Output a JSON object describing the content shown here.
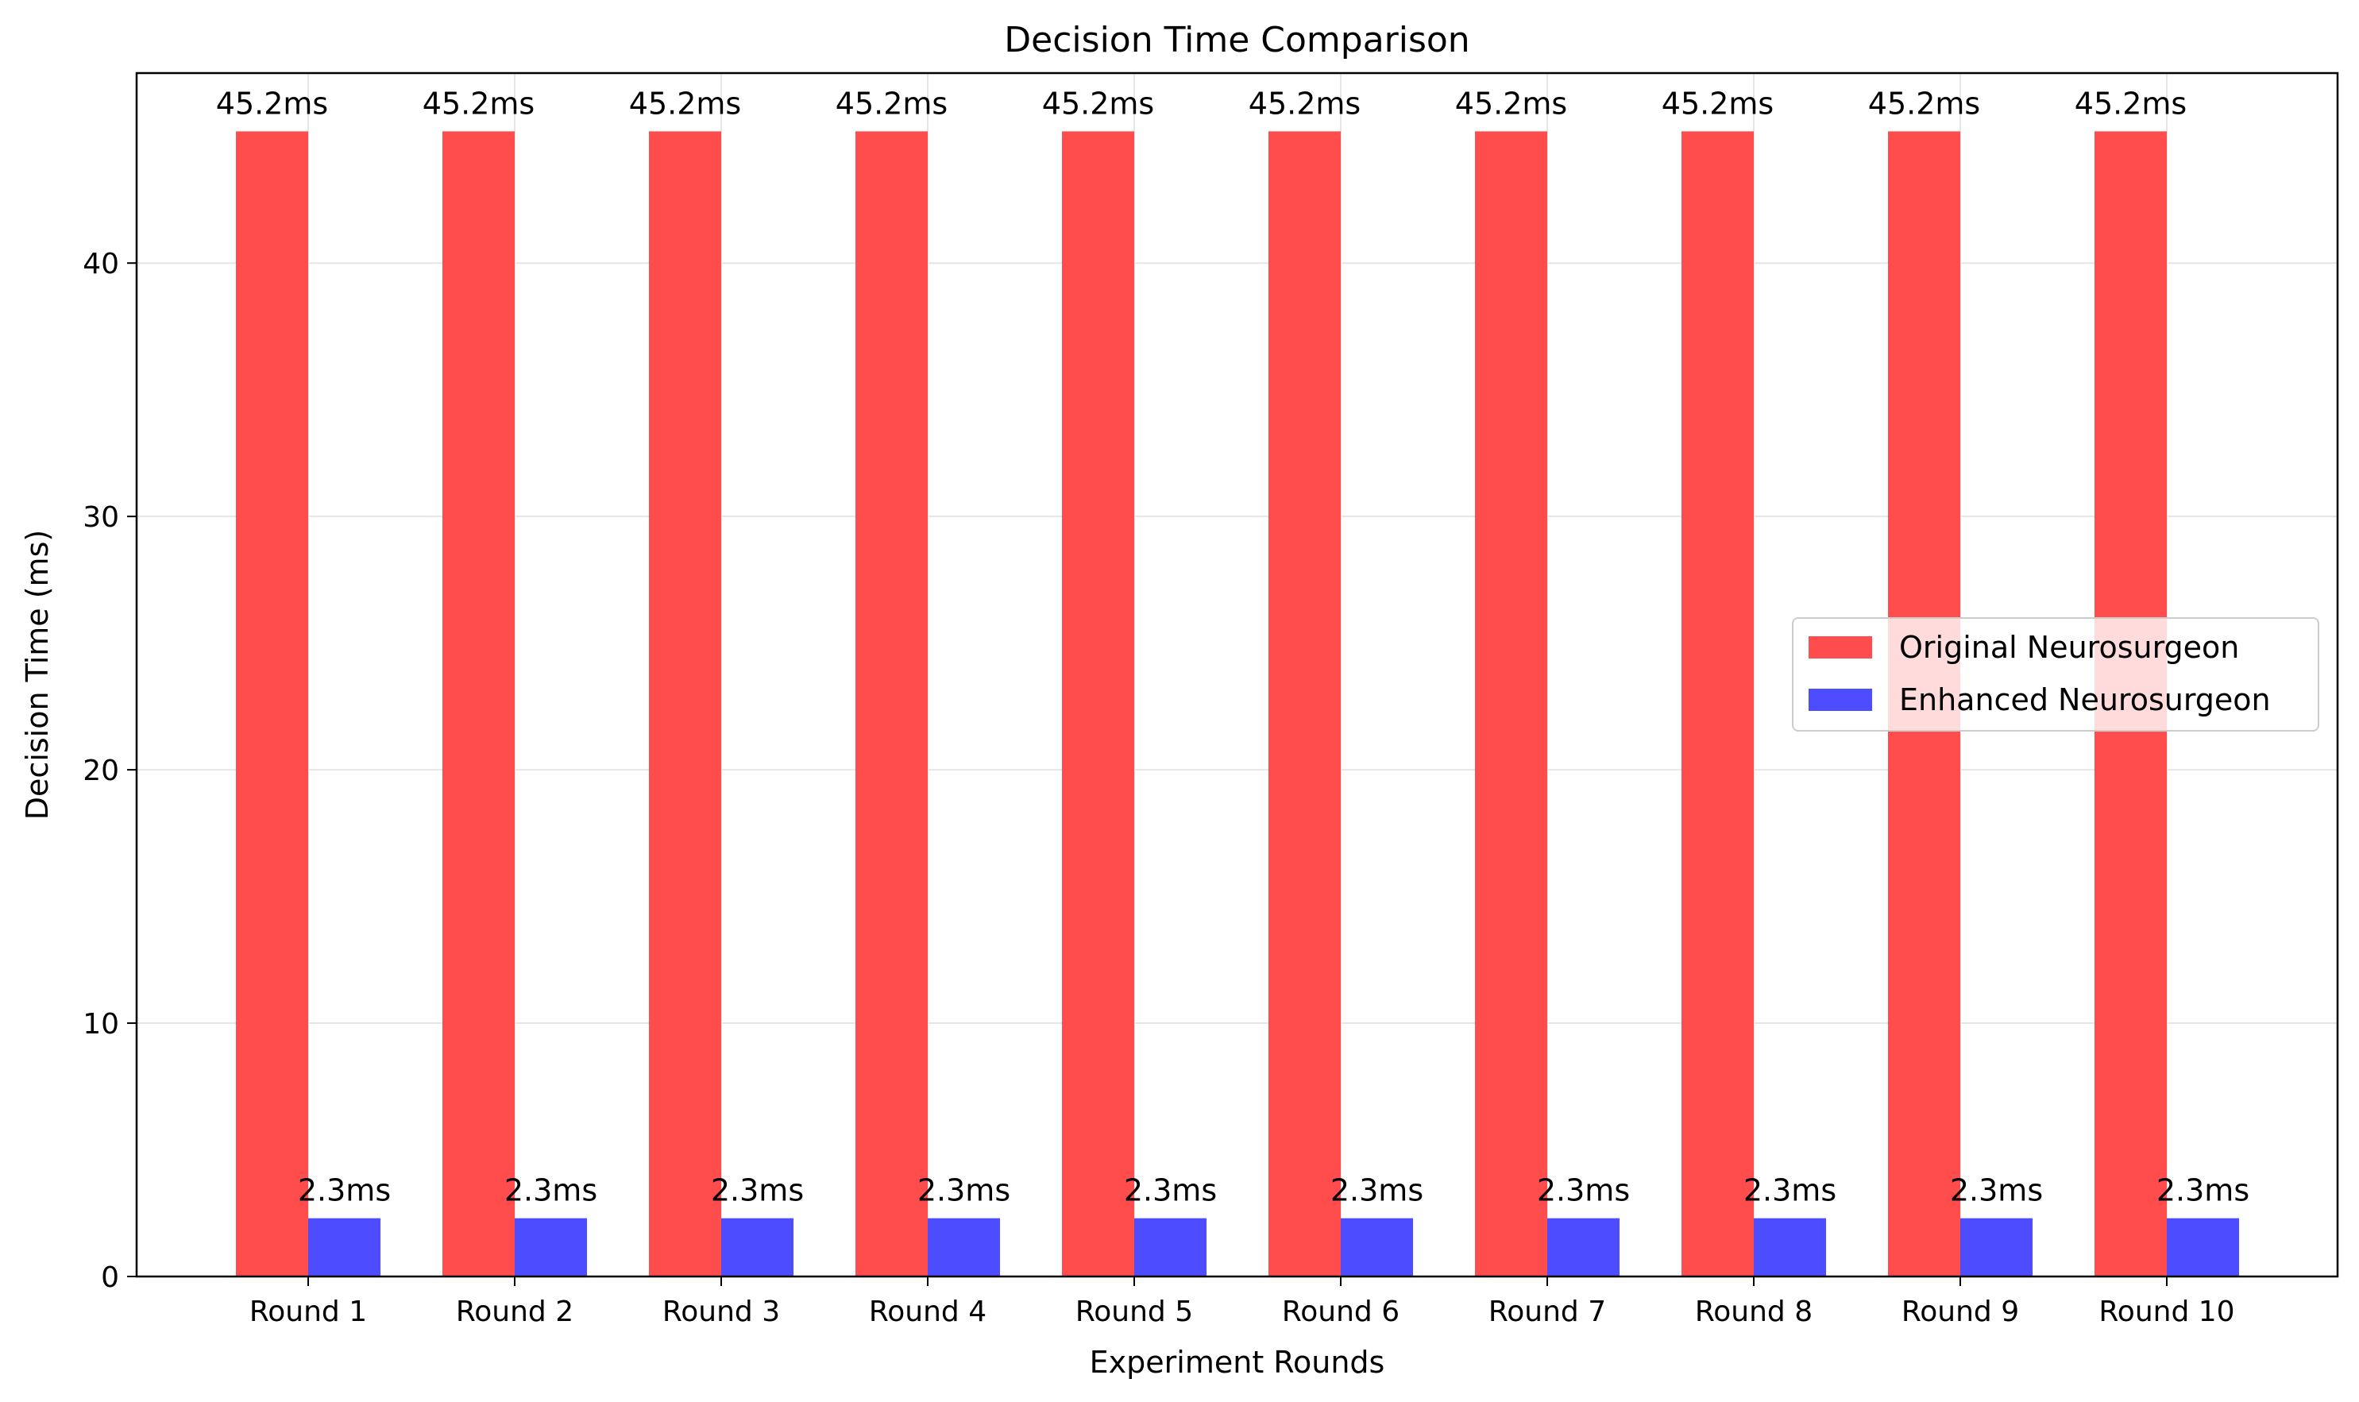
{
  "chart_data": {
    "type": "bar",
    "title": "Decision Time Comparison",
    "xlabel": "Experiment Rounds",
    "ylabel": "Decision Time (ms)",
    "categories": [
      "Round 1",
      "Round 2",
      "Round 3",
      "Round 4",
      "Round 5",
      "Round 6",
      "Round 7",
      "Round 8",
      "Round 9",
      "Round 10"
    ],
    "series": [
      {
        "name": "Original Neurosurgeon",
        "color": "#ff4d4d",
        "values": [
          45.2,
          45.2,
          45.2,
          45.2,
          45.2,
          45.2,
          45.2,
          45.2,
          45.2,
          45.2
        ],
        "labels": [
          "45.2ms",
          "45.2ms",
          "45.2ms",
          "45.2ms",
          "45.2ms",
          "45.2ms",
          "45.2ms",
          "45.2ms",
          "45.2ms",
          "45.2ms"
        ]
      },
      {
        "name": "Enhanced Neurosurgeon",
        "color": "#4d4dff",
        "values": [
          2.3,
          2.3,
          2.3,
          2.3,
          2.3,
          2.3,
          2.3,
          2.3,
          2.3,
          2.3
        ],
        "labels": [
          "2.3ms",
          "2.3ms",
          "2.3ms",
          "2.3ms",
          "2.3ms",
          "2.3ms",
          "2.3ms",
          "2.3ms",
          "2.3ms",
          "2.3ms"
        ]
      }
    ],
    "yticks": [
      0,
      10,
      20,
      30,
      40
    ],
    "ylim": [
      0,
      47.5
    ],
    "grid": true,
    "legend_position": "center-right"
  }
}
